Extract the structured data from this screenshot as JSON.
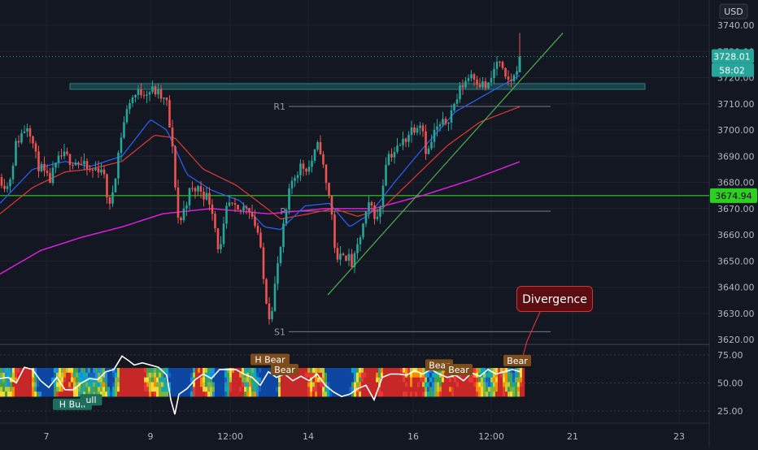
{
  "colors": {
    "background": "#131722",
    "grid": "#1e222d",
    "text": "#b2b5be",
    "bull_candle": "#26a69a",
    "bear_candle": "#ef5350",
    "ma_fast": "#2962ff",
    "ma_mid": "#e53935",
    "ma_slow": "#e91ee6",
    "trendline": "#4caf50",
    "horizontal_line": "#2cd11f",
    "resistance_zone": "#1f4f53",
    "pivot_line": "#787b86",
    "price_badge": "#26a69a",
    "divergence_line": "#d1323c",
    "bear_tag": "#7c4d1b",
    "bull_tag": "#1f6d5c"
  },
  "chart_data": {
    "type": "candlestick",
    "currency": "USD",
    "x_labels": [
      "7",
      "9",
      "12:00",
      "14",
      "16",
      "12:00",
      "21",
      "23"
    ],
    "y_ticks": [
      "3740.00",
      "3730.00",
      "3720.00",
      "3710.00",
      "3700.00",
      "3690.00",
      "3680.00",
      "3670.00",
      "3660.00",
      "3650.00",
      "3640.00",
      "3630.00",
      "3620.00"
    ],
    "ylim": [
      3619,
      3745
    ],
    "current_price": "3728.01",
    "countdown": "58:02",
    "horizontal_line_price": "3674.94",
    "horizontal_line_value": 3674.94,
    "resistance_zone": [
      3715.5,
      3717.7
    ],
    "pivots": [
      {
        "label": "R1",
        "value": 3709
      },
      {
        "label": "P",
        "value": 3669
      },
      {
        "label": "S1",
        "value": 3623
      }
    ],
    "price_path": [
      [
        0,
        3682
      ],
      [
        10,
        3678
      ],
      [
        20,
        3695
      ],
      [
        35,
        3703
      ],
      [
        45,
        3688
      ],
      [
        60,
        3680
      ],
      [
        75,
        3690
      ],
      [
        95,
        3688
      ],
      [
        110,
        3684
      ],
      [
        125,
        3686
      ],
      [
        135,
        3670
      ],
      [
        150,
        3700
      ],
      [
        160,
        3712
      ],
      [
        175,
        3715
      ],
      [
        190,
        3715
      ],
      [
        205,
        3710
      ],
      [
        212,
        3692
      ],
      [
        220,
        3663
      ],
      [
        232,
        3676
      ],
      [
        245,
        3678
      ],
      [
        260,
        3672
      ],
      [
        270,
        3652
      ],
      [
        280,
        3672
      ],
      [
        292,
        3668
      ],
      [
        305,
        3672
      ],
      [
        318,
        3660
      ],
      [
        325,
        3640
      ],
      [
        332,
        3628
      ],
      [
        340,
        3645
      ],
      [
        350,
        3665
      ],
      [
        358,
        3680
      ],
      [
        368,
        3686
      ],
      [
        380,
        3686
      ],
      [
        393,
        3695
      ],
      [
        400,
        3680
      ],
      [
        406,
        3674
      ],
      [
        414,
        3648
      ],
      [
        422,
        3654
      ],
      [
        434,
        3648
      ],
      [
        445,
        3662
      ],
      [
        455,
        3672
      ],
      [
        465,
        3665
      ],
      [
        475,
        3690
      ],
      [
        490,
        3693
      ],
      [
        505,
        3700
      ],
      [
        518,
        3704
      ],
      [
        525,
        3690
      ],
      [
        535,
        3700
      ],
      [
        545,
        3702
      ],
      [
        555,
        3707
      ],
      [
        568,
        3717
      ],
      [
        580,
        3722
      ],
      [
        590,
        3718
      ],
      [
        600,
        3716
      ],
      [
        612,
        3727
      ],
      [
        622,
        3718
      ],
      [
        632,
        3720
      ],
      [
        638,
        3728
      ]
    ],
    "ma_fast": [
      [
        0,
        3672
      ],
      [
        40,
        3685
      ],
      [
        80,
        3688
      ],
      [
        110,
        3686
      ],
      [
        150,
        3690
      ],
      [
        185,
        3704
      ],
      [
        205,
        3700
      ],
      [
        230,
        3683
      ],
      [
        260,
        3677
      ],
      [
        295,
        3673
      ],
      [
        325,
        3663
      ],
      [
        345,
        3662
      ],
      [
        375,
        3671
      ],
      [
        405,
        3672
      ],
      [
        430,
        3663
      ],
      [
        455,
        3668
      ],
      [
        485,
        3680
      ],
      [
        520,
        3693
      ],
      [
        560,
        3707
      ],
      [
        600,
        3714
      ],
      [
        640,
        3721
      ]
    ],
    "ma_mid": [
      [
        0,
        3668
      ],
      [
        40,
        3678
      ],
      [
        80,
        3684
      ],
      [
        110,
        3685
      ],
      [
        150,
        3688
      ],
      [
        190,
        3698
      ],
      [
        215,
        3697
      ],
      [
        250,
        3685
      ],
      [
        290,
        3679
      ],
      [
        320,
        3672
      ],
      [
        345,
        3666
      ],
      [
        380,
        3668
      ],
      [
        410,
        3670
      ],
      [
        440,
        3667
      ],
      [
        470,
        3670
      ],
      [
        510,
        3682
      ],
      [
        550,
        3694
      ],
      [
        590,
        3703
      ],
      [
        640,
        3709
      ]
    ],
    "ma_slow": [
      [
        0,
        3645
      ],
      [
        50,
        3654
      ],
      [
        100,
        3659
      ],
      [
        150,
        3663
      ],
      [
        200,
        3668
      ],
      [
        260,
        3670
      ],
      [
        330,
        3668
      ],
      [
        400,
        3670
      ],
      [
        460,
        3670
      ],
      [
        520,
        3675
      ],
      [
        580,
        3681
      ],
      [
        640,
        3688
      ]
    ],
    "trendline": [
      [
        403,
        3637
      ],
      [
        692,
        3737
      ]
    ],
    "oscillator": {
      "ticks": [
        "75.00",
        "50.00",
        "25.00"
      ],
      "ylim": [
        18,
        82
      ],
      "line": [
        [
          0,
          54
        ],
        [
          10,
          55
        ],
        [
          20,
          50
        ],
        [
          30,
          64
        ],
        [
          40,
          62
        ],
        [
          50,
          52
        ],
        [
          60,
          46
        ],
        [
          70,
          55
        ],
        [
          80,
          44
        ],
        [
          90,
          44
        ],
        [
          100,
          50
        ],
        [
          110,
          54
        ],
        [
          120,
          53
        ],
        [
          130,
          60
        ],
        [
          140,
          62
        ],
        [
          150,
          74
        ],
        [
          158,
          70
        ],
        [
          165,
          66
        ],
        [
          175,
          68
        ],
        [
          185,
          66
        ],
        [
          195,
          64
        ],
        [
          205,
          57
        ],
        [
          210,
          35
        ],
        [
          215,
          22
        ],
        [
          220,
          40
        ],
        [
          230,
          45
        ],
        [
          240,
          53
        ],
        [
          250,
          58
        ],
        [
          260,
          54
        ],
        [
          270,
          62
        ],
        [
          280,
          62
        ],
        [
          290,
          62
        ],
        [
          300,
          58
        ],
        [
          310,
          55
        ],
        [
          320,
          48
        ],
        [
          330,
          60
        ],
        [
          340,
          55
        ],
        [
          350,
          58
        ],
        [
          360,
          52
        ],
        [
          370,
          56
        ],
        [
          380,
          52
        ],
        [
          390,
          58
        ],
        [
          400,
          48
        ],
        [
          410,
          42
        ],
        [
          420,
          38
        ],
        [
          430,
          40
        ],
        [
          440,
          45
        ],
        [
          450,
          48
        ],
        [
          460,
          35
        ],
        [
          470,
          55
        ],
        [
          480,
          58
        ],
        [
          490,
          58
        ],
        [
          500,
          57
        ],
        [
          510,
          61
        ],
        [
          520,
          58
        ],
        [
          530,
          62
        ],
        [
          540,
          58
        ],
        [
          550,
          55
        ],
        [
          560,
          57
        ],
        [
          570,
          52
        ],
        [
          580,
          59
        ],
        [
          590,
          56
        ],
        [
          600,
          62
        ],
        [
          610,
          58
        ],
        [
          620,
          60
        ],
        [
          630,
          62
        ],
        [
          640,
          60
        ]
      ],
      "tags": [
        {
          "label": "H Bear",
          "kind": "bear",
          "x": 332,
          "value": 71
        },
        {
          "label": "Bear",
          "kind": "bear",
          "x": 350,
          "value": 62
        },
        {
          "label": "Bear",
          "kind": "bear",
          "x": 540,
          "value": 66
        },
        {
          "label": "Bear",
          "kind": "bear",
          "x": 564,
          "value": 62
        },
        {
          "label": "Bear",
          "kind": "bear",
          "x": 636,
          "value": 70
        },
        {
          "label": "H Bull",
          "kind": "bull",
          "x": 89,
          "value": 31
        },
        {
          "label": "ull",
          "kind": "bull",
          "x": 112,
          "value": 35
        }
      ]
    }
  },
  "annotation": {
    "text": "Divergence"
  }
}
